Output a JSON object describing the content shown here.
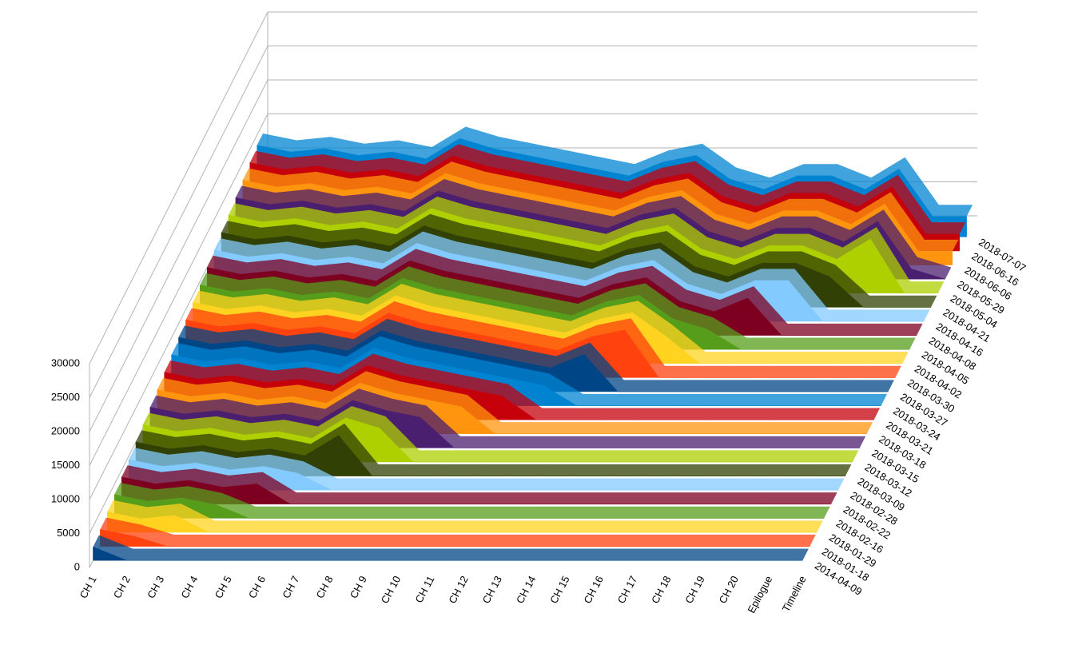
{
  "chart_data": {
    "type": "area3d",
    "categories": [
      "CH 1",
      "CH 2",
      "CH 3",
      "CH 4",
      "CH 5",
      "CH 6",
      "CH 7",
      "CH 8",
      "CH 9",
      "CH 10",
      "CH 11",
      "CH 12",
      "CH 13",
      "CH 14",
      "CH 15",
      "CH 16",
      "CH 17",
      "CH 18",
      "CH 19",
      "CH 20",
      "Epilogue",
      "Timeline"
    ],
    "ylim": [
      0,
      30000
    ],
    "yticks": [
      0,
      5000,
      10000,
      15000,
      20000,
      25000,
      30000
    ],
    "grid": true,
    "series": [
      {
        "name": "2014-04-09",
        "color": "#004586",
        "values": [
          2000,
          0,
          0,
          0,
          0,
          0,
          0,
          0,
          0,
          0,
          0,
          0,
          0,
          0,
          0,
          0,
          0,
          0,
          0,
          0,
          0,
          0
        ]
      },
      {
        "name": "2018-01-18",
        "color": "#ff420e",
        "values": [
          2500,
          1500,
          0,
          0,
          0,
          0,
          0,
          0,
          0,
          0,
          0,
          0,
          0,
          0,
          0,
          0,
          0,
          0,
          0,
          0,
          0,
          0
        ]
      },
      {
        "name": "2018-01-29",
        "color": "#ffd320",
        "values": [
          3000,
          2000,
          2500,
          0,
          0,
          0,
          0,
          0,
          0,
          0,
          0,
          0,
          0,
          0,
          0,
          0,
          0,
          0,
          0,
          0,
          0,
          0
        ]
      },
      {
        "name": "2018-02-16",
        "color": "#579d1c",
        "values": [
          3500,
          2500,
          3000,
          2000,
          0,
          0,
          0,
          0,
          0,
          0,
          0,
          0,
          0,
          0,
          0,
          0,
          0,
          0,
          0,
          0,
          0,
          0
        ]
      },
      {
        "name": "2018-02-22",
        "color": "#7e0021",
        "values": [
          4000,
          3000,
          3500,
          2500,
          3000,
          0,
          0,
          0,
          0,
          0,
          0,
          0,
          0,
          0,
          0,
          0,
          0,
          0,
          0,
          0,
          0,
          0
        ]
      },
      {
        "name": "2018-02-28",
        "color": "#83caff",
        "values": [
          4500,
          3500,
          4000,
          3000,
          3500,
          2500,
          0,
          0,
          0,
          0,
          0,
          0,
          0,
          0,
          0,
          0,
          0,
          0,
          0,
          0,
          0,
          0
        ]
      },
      {
        "name": "2018-03-09",
        "color": "#314004",
        "values": [
          5000,
          4000,
          4500,
          3500,
          4000,
          3000,
          6000,
          0,
          0,
          0,
          0,
          0,
          0,
          0,
          0,
          0,
          0,
          0,
          0,
          0,
          0,
          0
        ]
      },
      {
        "name": "2018-03-12",
        "color": "#aecf00",
        "values": [
          5500,
          4500,
          5000,
          4000,
          4500,
          3500,
          6500,
          5000,
          0,
          0,
          0,
          0,
          0,
          0,
          0,
          0,
          0,
          0,
          0,
          0,
          0,
          0
        ]
      },
      {
        "name": "2018-03-15",
        "color": "#4b1f6f",
        "values": [
          6000,
          5000,
          5500,
          4500,
          5000,
          4000,
          7000,
          5500,
          4500,
          0,
          0,
          0,
          0,
          0,
          0,
          0,
          0,
          0,
          0,
          0,
          0,
          0
        ]
      },
      {
        "name": "2018-03-18",
        "color": "#ff950e",
        "values": [
          6500,
          5500,
          6000,
          5000,
          5500,
          4500,
          7500,
          6000,
          5000,
          4000,
          0,
          0,
          0,
          0,
          0,
          0,
          0,
          0,
          0,
          0,
          0,
          0
        ]
      },
      {
        "name": "2018-03-21",
        "color": "#c5000b",
        "values": [
          7000,
          6000,
          6500,
          5500,
          6000,
          5000,
          8000,
          6500,
          5500,
          4500,
          3500,
          0,
          0,
          0,
          0,
          0,
          0,
          0,
          0,
          0,
          0,
          0
        ]
      },
      {
        "name": "2018-03-24",
        "color": "#0084d1",
        "values": [
          7500,
          6500,
          7000,
          6000,
          6500,
          5500,
          8500,
          7000,
          6000,
          5000,
          4000,
          3000,
          0,
          0,
          0,
          0,
          0,
          0,
          0,
          0,
          0,
          0
        ]
      },
      {
        "name": "2018-03-27",
        "color": "#004586",
        "values": [
          8000,
          7000,
          7500,
          6500,
          7000,
          6000,
          9000,
          7500,
          6500,
          5500,
          4500,
          3500,
          5500,
          0,
          0,
          0,
          0,
          0,
          0,
          0,
          0,
          0
        ]
      },
      {
        "name": "2018-03-30",
        "color": "#ff420e",
        "values": [
          8500,
          7500,
          8000,
          7000,
          7500,
          6500,
          9500,
          8000,
          7000,
          6000,
          5000,
          4000,
          6000,
          7000,
          0,
          0,
          0,
          0,
          0,
          0,
          0,
          0
        ]
      },
      {
        "name": "2018-04-02",
        "color": "#ffd320",
        "values": [
          9000,
          8000,
          8500,
          7500,
          8000,
          7000,
          10000,
          8500,
          7500,
          6500,
          5500,
          4500,
          6500,
          7500,
          4000,
          0,
          0,
          0,
          0,
          0,
          0,
          0
        ]
      },
      {
        "name": "2018-04-05",
        "color": "#579d1c",
        "values": [
          9500,
          8500,
          9000,
          8000,
          8500,
          7500,
          10500,
          9000,
          8000,
          7000,
          6000,
          5000,
          7000,
          8000,
          4500,
          3000,
          0,
          0,
          0,
          0,
          0,
          0
        ]
      },
      {
        "name": "2018-04-08",
        "color": "#7e0021",
        "values": [
          10000,
          9000,
          9500,
          8500,
          9000,
          8000,
          11000,
          9500,
          8500,
          7500,
          6500,
          5500,
          7500,
          8500,
          5000,
          3500,
          5500,
          0,
          0,
          0,
          0,
          0
        ]
      },
      {
        "name": "2018-04-16",
        "color": "#83caff",
        "values": [
          10500,
          9500,
          10000,
          9000,
          9500,
          8500,
          11500,
          10000,
          9000,
          8000,
          7000,
          6000,
          8000,
          9000,
          5500,
          4000,
          6000,
          6000,
          0,
          0,
          0,
          0
        ]
      },
      {
        "name": "2018-04-21",
        "color": "#314004",
        "values": [
          11000,
          10000,
          10500,
          9500,
          10000,
          9000,
          12000,
          10500,
          9500,
          8500,
          7500,
          6500,
          8500,
          9500,
          6000,
          4500,
          6500,
          6500,
          4500,
          0,
          0,
          0
        ]
      },
      {
        "name": "2018-05-04",
        "color": "#aecf00",
        "values": [
          11500,
          10500,
          11000,
          10000,
          10500,
          9500,
          12500,
          11000,
          10000,
          9000,
          8000,
          7000,
          9000,
          10000,
          6500,
          5000,
          7000,
          7000,
          5000,
          8000,
          0,
          0
        ]
      },
      {
        "name": "2018-05-29",
        "color": "#4b1f6f",
        "values": [
          12000,
          11000,
          11500,
          10500,
          11000,
          10000,
          13000,
          11500,
          10500,
          9500,
          8500,
          7500,
          9500,
          10500,
          7000,
          5500,
          7500,
          7500,
          5500,
          8500,
          1500,
          0
        ]
      },
      {
        "name": "2018-06-06",
        "color": "#ff950e",
        "values": [
          12500,
          11500,
          12000,
          11000,
          11500,
          10500,
          13500,
          12000,
          11000,
          10000,
          9000,
          8000,
          10000,
          11000,
          7500,
          6000,
          8000,
          8000,
          6000,
          9000,
          2000,
          2000
        ]
      },
      {
        "name": "2018-06-16",
        "color": "#c5000b",
        "values": [
          13000,
          12000,
          12500,
          11500,
          12000,
          11000,
          14000,
          12500,
          11500,
          10500,
          9500,
          8500,
          10500,
          11500,
          8000,
          6500,
          8500,
          8500,
          6500,
          9500,
          2500,
          2500
        ]
      },
      {
        "name": "2018-07-07",
        "color": "#0084d1",
        "values": [
          13500,
          12500,
          13000,
          12000,
          12500,
          11500,
          14500,
          13000,
          12000,
          11000,
          10000,
          9000,
          11000,
          12000,
          8500,
          7000,
          9000,
          9000,
          7000,
          10000,
          3000,
          3000
        ]
      }
    ]
  }
}
